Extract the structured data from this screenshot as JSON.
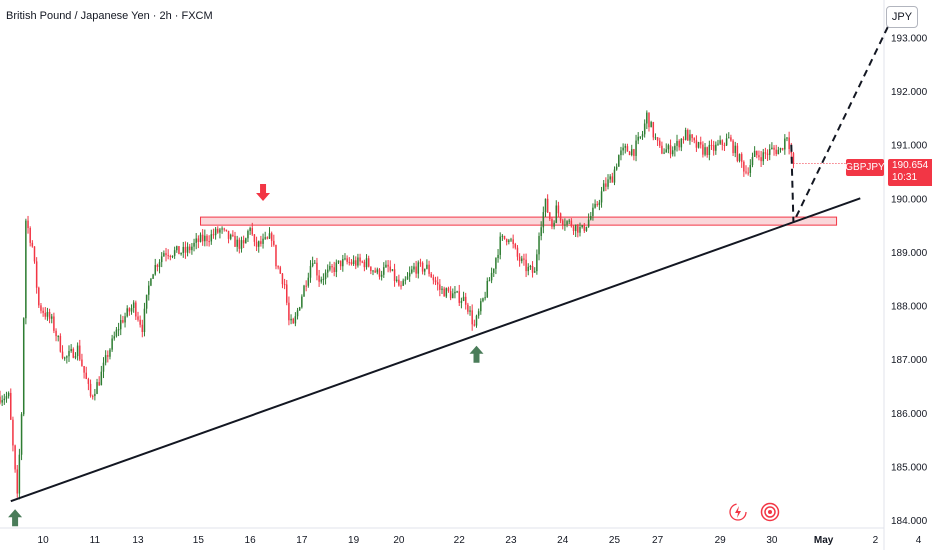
{
  "header": {
    "title": "British Pound / Japanese Yen · 2h · FXCM",
    "currency": "JPY"
  },
  "price_tag": {
    "symbol": "GBPJPY",
    "price": "190.654",
    "countdown": "10:31"
  },
  "icons": [
    "lightning-icon",
    "target-icon"
  ],
  "colors": {
    "up": "#2e7d32",
    "down": "#f23645",
    "zone_fill": "#f8c6cb",
    "trendline": "#131722"
  },
  "chart_data": {
    "type": "candlestick",
    "title": "British Pound / Japanese Yen · 2h · FXCM",
    "xlabel": "",
    "ylabel": "",
    "ylim": [
      183.85,
      193.7
    ],
    "ytick_labels": [
      "193.000",
      "192.000",
      "191.000",
      "190.000",
      "189.000",
      "188.000",
      "187.000",
      "186.000",
      "185.000",
      "184.000"
    ],
    "xtick_labels": [
      "10",
      "11",
      "13",
      "15",
      "16",
      "17",
      "19",
      "20",
      "22",
      "23",
      "24",
      "25",
      "27",
      "29",
      "30",
      "May",
      "2",
      "4"
    ],
    "x_index_range": [
      0,
      410
    ],
    "xtick_positions": [
      20,
      44,
      64,
      92,
      116,
      140,
      164,
      185,
      213,
      237,
      261,
      285,
      305,
      334,
      358,
      382,
      406,
      426
    ],
    "resistance_zone": {
      "low": 189.5,
      "high": 189.65,
      "from": 93,
      "to": 388
    },
    "trendline": {
      "x1": 5,
      "y1": 184.35,
      "x2": 399,
      "y2": 190.0
    },
    "projection": [
      {
        "x": 367,
        "y": 191.0
      },
      {
        "x": 368,
        "y": 189.55
      },
      {
        "x": 416,
        "y": 193.55
      }
    ],
    "markers": [
      {
        "type": "arrow-up",
        "x": 7,
        "y": 184.05,
        "color": "#4a7c59"
      },
      {
        "type": "arrow-down",
        "x": 122,
        "y": 190.1,
        "color": "#f23645"
      },
      {
        "type": "arrow-up",
        "x": 221,
        "y": 187.1,
        "color": "#4a7c59"
      }
    ],
    "anchors": [
      [
        0,
        186.3
      ],
      [
        4,
        186.3
      ],
      [
        8,
        184.4
      ],
      [
        10,
        186.0
      ],
      [
        12,
        189.6
      ],
      [
        15,
        189.1
      ],
      [
        18,
        188.0
      ],
      [
        24,
        187.7
      ],
      [
        30,
        187.0
      ],
      [
        36,
        187.2
      ],
      [
        42,
        186.3
      ],
      [
        46,
        186.6
      ],
      [
        50,
        187.1
      ],
      [
        56,
        187.7
      ],
      [
        62,
        188.0
      ],
      [
        66,
        187.6
      ],
      [
        70,
        188.6
      ],
      [
        76,
        189.0
      ],
      [
        80,
        189.0
      ],
      [
        86,
        189.0
      ],
      [
        92,
        189.2
      ],
      [
        98,
        189.3
      ],
      [
        102,
        189.4
      ],
      [
        108,
        189.2
      ],
      [
        113,
        189.1
      ],
      [
        116,
        189.5
      ],
      [
        118,
        189.1
      ],
      [
        124,
        189.2
      ],
      [
        126,
        189.3
      ],
      [
        128,
        188.8
      ],
      [
        132,
        188.4
      ],
      [
        134,
        187.7
      ],
      [
        136,
        187.6
      ],
      [
        140,
        188.2
      ],
      [
        145,
        188.9
      ],
      [
        148,
        188.5
      ],
      [
        152,
        188.6
      ],
      [
        158,
        188.8
      ],
      [
        162,
        188.8
      ],
      [
        170,
        188.8
      ],
      [
        175,
        188.6
      ],
      [
        180,
        188.7
      ],
      [
        186,
        188.3
      ],
      [
        192,
        188.7
      ],
      [
        198,
        188.7
      ],
      [
        204,
        188.3
      ],
      [
        210,
        188.2
      ],
      [
        216,
        188.1
      ],
      [
        220,
        187.6
      ],
      [
        224,
        188.1
      ],
      [
        228,
        188.6
      ],
      [
        232,
        189.2
      ],
      [
        236,
        189.3
      ],
      [
        240,
        188.9
      ],
      [
        244,
        188.7
      ],
      [
        248,
        188.6
      ],
      [
        250,
        189.4
      ],
      [
        253,
        189.9
      ],
      [
        256,
        189.5
      ],
      [
        258,
        189.8
      ],
      [
        261,
        189.6
      ],
      [
        266,
        189.5
      ],
      [
        270,
        189.4
      ],
      [
        276,
        189.8
      ],
      [
        280,
        190.2
      ],
      [
        284,
        190.4
      ],
      [
        287,
        190.8
      ],
      [
        290,
        190.9
      ],
      [
        294,
        190.9
      ],
      [
        298,
        191.2
      ],
      [
        300,
        191.55
      ],
      [
        303,
        191.2
      ],
      [
        306,
        190.9
      ],
      [
        310,
        190.9
      ],
      [
        314,
        191.0
      ],
      [
        318,
        191.2
      ],
      [
        322,
        191.0
      ],
      [
        326,
        190.9
      ],
      [
        330,
        190.9
      ],
      [
        334,
        191.0
      ],
      [
        338,
        191.1
      ],
      [
        342,
        190.8
      ],
      [
        346,
        190.5
      ],
      [
        350,
        190.8
      ],
      [
        354,
        190.8
      ],
      [
        358,
        190.9
      ],
      [
        362,
        190.9
      ],
      [
        365,
        191.2
      ],
      [
        368,
        190.65
      ]
    ],
    "last_candle": 368
  }
}
